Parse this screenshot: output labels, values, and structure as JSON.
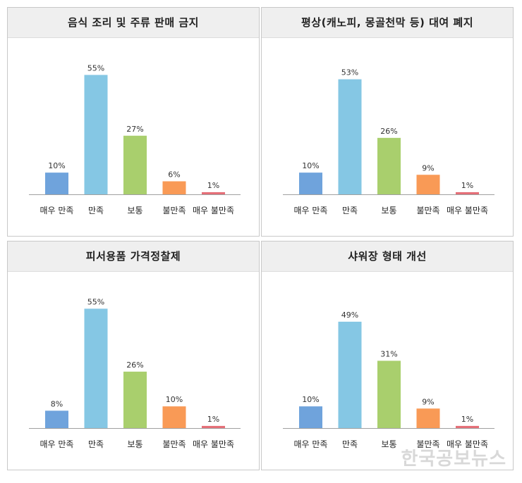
{
  "chart_data": [
    {
      "type": "bar",
      "title": "음식 조리 및 주류 판매 금지",
      "categories": [
        "매우 만족",
        "만족",
        "보통",
        "불만족",
        "매우 불만족"
      ],
      "values": [
        10,
        55,
        27,
        6,
        1
      ],
      "value_labels": [
        "10%",
        "55%",
        "27%",
        "6%",
        "1%"
      ],
      "colors": [
        "#6fa3dc",
        "#85c7e4",
        "#a9cf6d",
        "#f99a56",
        "#e56f78"
      ],
      "ylim": [
        0,
        60
      ]
    },
    {
      "type": "bar",
      "title": "평상(캐노피, 몽골천막 등) 대여 폐지",
      "categories": [
        "매우 만족",
        "만족",
        "보통",
        "불만족",
        "매우 불만족"
      ],
      "values": [
        10,
        53,
        26,
        9,
        1
      ],
      "value_labels": [
        "10%",
        "53%",
        "26%",
        "9%",
        "1%"
      ],
      "colors": [
        "#6fa3dc",
        "#85c7e4",
        "#a9cf6d",
        "#f99a56",
        "#e56f78"
      ],
      "ylim": [
        0,
        60
      ]
    },
    {
      "type": "bar",
      "title": "피서용품 가격정찰제",
      "categories": [
        "매우 만족",
        "만족",
        "보통",
        "불만족",
        "매우 불만족"
      ],
      "values": [
        8,
        55,
        26,
        10,
        1
      ],
      "value_labels": [
        "8%",
        "55%",
        "26%",
        "10%",
        "1%"
      ],
      "colors": [
        "#6fa3dc",
        "#85c7e4",
        "#a9cf6d",
        "#f99a56",
        "#e56f78"
      ],
      "ylim": [
        0,
        60
      ]
    },
    {
      "type": "bar",
      "title": "샤워장 형태 개선",
      "categories": [
        "매우 만족",
        "만족",
        "보통",
        "불만족",
        "매우 불만족"
      ],
      "values": [
        10,
        49,
        31,
        9,
        1
      ],
      "value_labels": [
        "10%",
        "49%",
        "31%",
        "9%",
        "1%"
      ],
      "colors": [
        "#6fa3dc",
        "#85c7e4",
        "#a9cf6d",
        "#f99a56",
        "#e56f78"
      ],
      "ylim": [
        0,
        60
      ]
    }
  ],
  "watermark": "한국공보뉴스"
}
